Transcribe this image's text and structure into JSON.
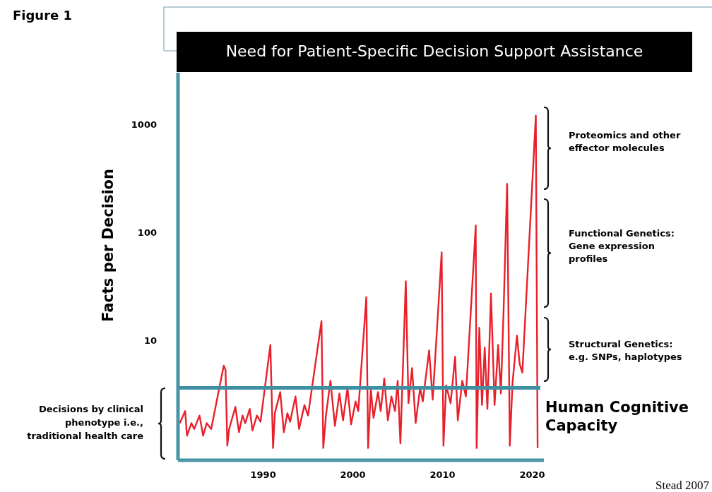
{
  "chart_data": {
    "type": "line",
    "title": "Need for Patient-Specific Decision Support Assistance",
    "ylabel": "Facts per Decision",
    "log": true,
    "x": [
      1980.7,
      1981.3,
      1981.5,
      1982.0,
      1982.3,
      1982.9,
      1983.3,
      1983.7,
      1984.2,
      1985.6,
      1985.8,
      1986.0,
      1986.2,
      1986.9,
      1987.3,
      1987.7,
      1988.0,
      1988.5,
      1988.8,
      1989.3,
      1989.7,
      1990.8,
      1991.1,
      1991.3,
      1991.9,
      1992.3,
      1992.7,
      1993.0,
      1993.6,
      1994.0,
      1994.6,
      1995.0,
      1996.5,
      1996.7,
      1997.0,
      1997.5,
      1998.0,
      1998.5,
      1998.9,
      1999.4,
      1999.8,
      2000.3,
      2000.6,
      2001.5,
      2001.7,
      2002.0,
      2002.3,
      2002.8,
      2003.1,
      2003.5,
      2003.9,
      2004.3,
      2004.7,
      2005.0,
      2005.3,
      2005.9,
      2006.2,
      2006.6,
      2007.0,
      2007.5,
      2007.8,
      2008.5,
      2008.9,
      2009.9,
      2010.1,
      2010.4,
      2010.9,
      2011.4,
      2011.7,
      2012.2,
      2012.6,
      2013.7,
      2013.8,
      2014.1,
      2014.4,
      2014.7,
      2015.0,
      2015.4,
      2015.8,
      2016.2,
      2016.5,
      2016.8,
      2017.2,
      2017.5,
      2017.8,
      2018.3,
      2018.6,
      2018.9,
      2020.4,
      2020.6
    ],
    "series": [
      {
        "color": "#e8202a",
        "values": [
          1.7,
          2.2,
          1.3,
          1.7,
          1.5,
          2.0,
          1.3,
          1.7,
          1.5,
          5.8,
          5.3,
          1.05,
          1.5,
          2.4,
          1.4,
          2.0,
          1.7,
          2.3,
          1.45,
          2.0,
          1.75,
          9,
          1.0,
          2.1,
          3.3,
          1.4,
          2.1,
          1.75,
          3.0,
          1.5,
          2.5,
          2.0,
          15,
          1.0,
          2.0,
          4.2,
          1.6,
          3.2,
          1.8,
          3.6,
          1.65,
          2.7,
          2.2,
          25,
          1.0,
          3.5,
          1.9,
          3.3,
          2.2,
          4.4,
          1.8,
          3.0,
          2.2,
          4.2,
          1.1,
          35,
          2.6,
          5.5,
          1.7,
          3.6,
          2.7,
          8,
          2.8,
          65,
          1.05,
          3.8,
          2.6,
          7,
          1.8,
          4.2,
          3.0,
          115,
          1.0,
          13,
          2.5,
          8.5,
          2.3,
          27,
          2.5,
          9,
          3.2,
          18,
          280,
          1.05,
          4.0,
          11,
          6,
          5,
          1200,
          1.0
        ]
      }
    ],
    "xlim": [
      1980.5,
      2021.3
    ],
    "ylim": [
      0.77,
      3000
    ],
    "xticks": [
      1990,
      2000,
      2010,
      2020
    ],
    "yticks": [
      10,
      100,
      1000
    ],
    "ref_lines": [
      {
        "axis": "y",
        "value": 3.6,
        "label": "Human Cognitive Capacity",
        "color": "#3f8fa3"
      }
    ],
    "marker": "none",
    "line_style": "solid",
    "grid": false,
    "annotations": [
      "Figure 1",
      "Stead 2007",
      "Proteomics and other effector molecules",
      "Functional Genetics: Gene expression profiles",
      "Structural Genetics: e.g. SNPs, haplotypes",
      "Decisions by clinical phenotype i.e., traditional health care"
    ]
  }
}
